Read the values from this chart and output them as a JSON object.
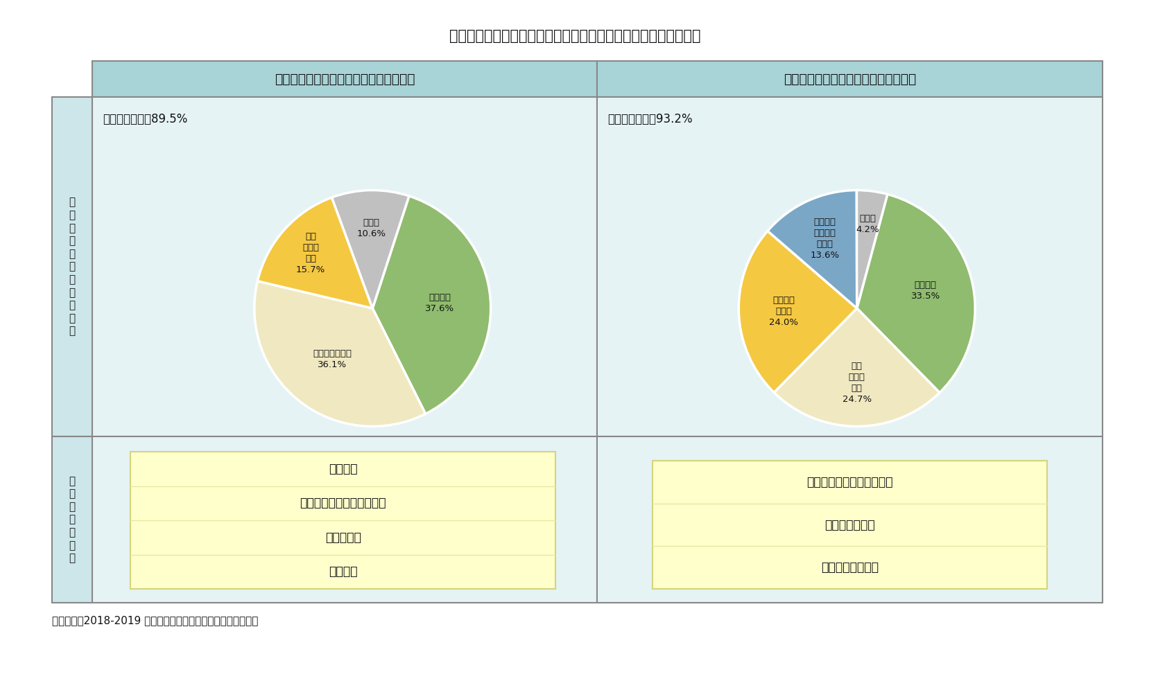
{
  "title": "図表３　高齢者が今後希望する介助・介護体制と必要なサービス",
  "col1_header": "大部分で介助が必要な高齢者（中程度）",
  "col2_header": "全面的な介助が必要な高齢者（重度）",
  "row1_label": "希\n望\nす\nる\n介\n助\n・\n介\n護\n体\n制",
  "row2_label": "必\n要\nな\nサ\nー\nビ\nス",
  "pie1_demand": "今後の需要度：89.5%",
  "pie1_values": [
    37.6,
    36.1,
    15.7,
    10.6
  ],
  "pie1_colors": [
    "#8fbc6e",
    "#f0e8c0",
    "#f5c842",
    "#c0c0c0"
  ],
  "pie1_startangle": 72,
  "pie2_demand": "今後の需要度：93.2%",
  "pie2_values": [
    33.5,
    24.7,
    24.0,
    13.6,
    4.2
  ],
  "pie2_colors": [
    "#8fbc6e",
    "#f0e8c0",
    "#f5c842",
    "#7ba7c7",
    "#c0c0c0"
  ],
  "pie2_startangle": 75,
  "pie1_labels": [
    "専門機関\n37.6%",
    "在宅（近親者）\n36.1%",
    "在宅\n（家政\n婦）\n15.7%",
    "その他\n10.6%"
  ],
  "pie1_label_r": [
    0.57,
    0.55,
    0.7,
    0.68
  ],
  "pie2_labels": [
    "専門機関\n33.5%",
    "在宅\n（近親\n者）\n24.7%",
    "在宅（家\n政婦）\n24.0%",
    "地区の介\n護ステー\nション\n13.6%",
    "その他\n4.2%"
  ],
  "pie2_label_r": [
    0.6,
    0.63,
    0.62,
    0.65,
    0.72
  ],
  "services1": [
    "服薬介助",
    "尿道カテーテルなどの管理",
    "マッサージ",
    "食事配達"
  ],
  "services2": [
    "尿道カテーテルなどの管理",
    "傷・褥瘡の治療",
    "心理的なサポート"
  ],
  "source": "（出所）『2018-2019 中国長期介護調査・研究報告』より作成",
  "bg_color": "#ffffff",
  "header_bg": "#a8d4d8",
  "cell_bg": "#e5f3f5",
  "label_bg": "#cce6ea",
  "service_box_bg": "#ffffcc",
  "service_box_border": "#d4d47a",
  "service_divider": "#e8e8a0"
}
